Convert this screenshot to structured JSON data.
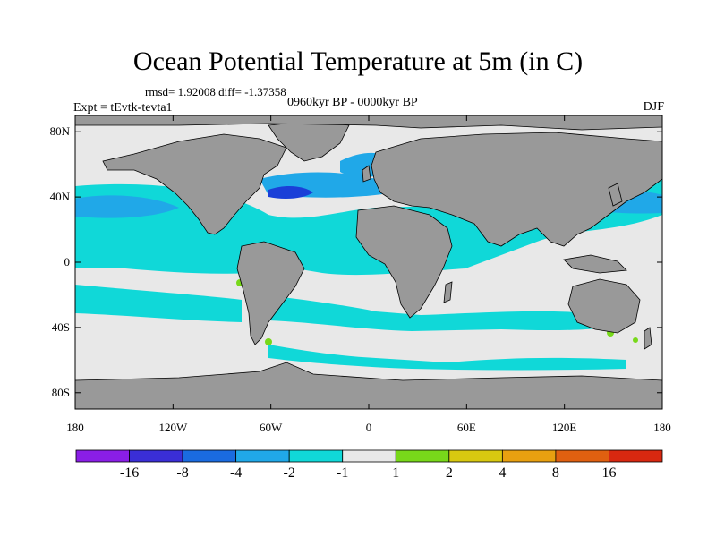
{
  "figure": {
    "title": "Ocean Potential Temperature at 5m (in C)",
    "stats": "rmsd= 1.92008 diff= -1.37358",
    "experiment": "Expt = tEvtk-tevta1",
    "period": "0960kyr BP - 0000kyr BP",
    "season": "DJF"
  },
  "map": {
    "projection": "cylindrical equidistant",
    "lon_range": [
      -180,
      180
    ],
    "lat_range": [
      -90,
      90
    ],
    "lat_ticks": [
      {
        "value": 80,
        "label": "80N"
      },
      {
        "value": 40,
        "label": "40N"
      },
      {
        "value": 0,
        "label": "0"
      },
      {
        "value": -40,
        "label": "40S"
      },
      {
        "value": -80,
        "label": "80S"
      }
    ],
    "lon_ticks": [
      {
        "value": -180,
        "label": "180"
      },
      {
        "value": -120,
        "label": "120W"
      },
      {
        "value": -60,
        "label": "60W"
      },
      {
        "value": 0,
        "label": "0"
      },
      {
        "value": 60,
        "label": "60E"
      },
      {
        "value": 120,
        "label": "120E"
      },
      {
        "value": 180,
        "label": "180"
      }
    ],
    "land_color": "#999999",
    "ocean_neutral_color": "#e8e8e8"
  },
  "colorbar": {
    "levels": [
      "-16",
      "-8",
      "-4",
      "-2",
      "-1",
      "1",
      "2",
      "4",
      "8",
      "16"
    ],
    "colors": [
      "#8a1ee6",
      "#3a2ed6",
      "#1a6be0",
      "#20a8e8",
      "#10d8d8",
      "#e8e8e8",
      "#78d81a",
      "#d8c810",
      "#e8a010",
      "#e06010",
      "#d82810"
    ]
  },
  "colors": {
    "anomaly_strong_cool": "#1a3fd8",
    "anomaly_cool": "#1a6be0",
    "anomaly_moderate_cool": "#20a8e8",
    "anomaly_weak_cool": "#10d8d8",
    "anomaly_weak_warm": "#78d81a",
    "anomaly_warm": "#d8c810"
  }
}
